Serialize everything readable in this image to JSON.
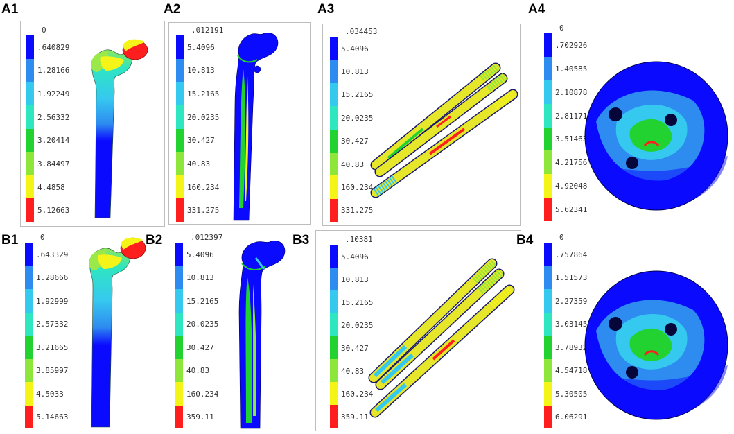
{
  "panels": [
    {
      "label": "A1",
      "legend": [
        "0",
        ".640829",
        "1.28166",
        "1.92249",
        "2.56332",
        "3.20414",
        "3.84497",
        "4.4858",
        "5.12663"
      ]
    },
    {
      "label": "A2",
      "legend": [
        ".012191",
        "5.4096",
        "10.813",
        "15.2165",
        "20.0235",
        "30.427",
        "40.83",
        "160.234",
        "331.275"
      ]
    },
    {
      "label": "A3",
      "legend": [
        ".034453",
        "5.4096",
        "10.813",
        "15.2165",
        "20.0235",
        "30.427",
        "40.83",
        "160.234",
        "331.275"
      ]
    },
    {
      "label": "A4",
      "legend": [
        "0",
        ".702926",
        "1.40585",
        "2.10878",
        "2.81171",
        "3.51463",
        "4.21756",
        "4.92048",
        "5.62341"
      ]
    },
    {
      "label": "B1",
      "legend": [
        "0",
        ".643329",
        "1.28666",
        "1.92999",
        "2.57332",
        "3.21665",
        "3.85997",
        "4.5033",
        "5.14663"
      ]
    },
    {
      "label": "B2",
      "legend": [
        ".012397",
        "5.4096",
        "10.813",
        "15.2165",
        "20.0235",
        "30.427",
        "40.83",
        "160.234",
        "359.11"
      ]
    },
    {
      "label": "B3",
      "legend": [
        ".10381",
        "5.4096",
        "10.813",
        "15.2165",
        "20.0235",
        "30.427",
        "40.83",
        "160.234",
        "359.11"
      ]
    },
    {
      "label": "B4",
      "legend": [
        "0",
        ".757864",
        "1.51573",
        "2.27359",
        "3.03145",
        "3.78932",
        "4.54718",
        "5.30505",
        "6.06291"
      ]
    }
  ],
  "colors": {
    "scale": [
      "#0a0aff",
      "#2e8bf0",
      "#36c9f0",
      "#2ee6c0",
      "#22d230",
      "#8ee63a",
      "#f4f418",
      "#ff1e1e"
    ]
  }
}
